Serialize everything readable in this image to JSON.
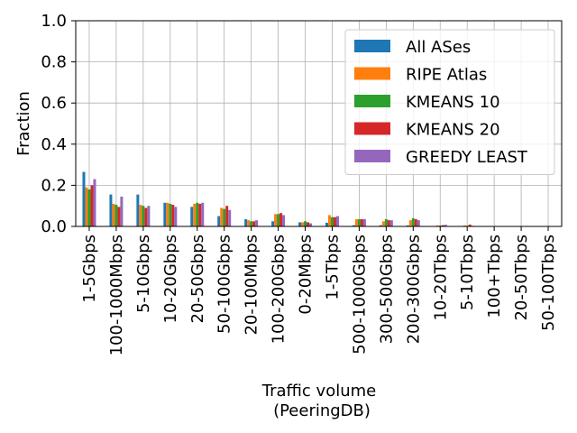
{
  "chart_data": {
    "type": "bar",
    "xlabel_line1": "Traffic volume",
    "xlabel_line2": "(PeeringDB)",
    "ylabel": "Fraction",
    "ylim": [
      0,
      1.0
    ],
    "yticks": [
      "0.0",
      "0.2",
      "0.4",
      "0.6",
      "0.8",
      "1.0"
    ],
    "grid": true,
    "legend_position": "top-right",
    "categories": [
      "1-5Gbps",
      "100-1000Mbps",
      "5-10Gbps",
      "10-20Gbps",
      "20-50Gbps",
      "50-100Gbps",
      "20-100Mbps",
      "100-200Gbps",
      "0-20Mbps",
      "1-5Tbps",
      "500-1000Gbps",
      "300-500Gbps",
      "200-300Gbps",
      "10-20Tbps",
      "5-10Tbps",
      "100+Tbps",
      "20-50Tbps",
      "50-100Tbps"
    ],
    "series": [
      {
        "name": "All ASes",
        "color": "#1f77b4",
        "values": [
          0.265,
          0.155,
          0.155,
          0.115,
          0.095,
          0.05,
          0.035,
          0.025,
          0.02,
          0.018,
          0.006,
          0.006,
          0.005,
          0.002,
          0.002,
          0.0,
          0.0,
          0.0
        ]
      },
      {
        "name": "RIPE Atlas",
        "color": "#ff7f0e",
        "values": [
          0.19,
          0.11,
          0.105,
          0.115,
          0.11,
          0.09,
          0.03,
          0.06,
          0.02,
          0.055,
          0.035,
          0.025,
          0.03,
          0.005,
          0.005,
          0.001,
          0.0,
          0.0
        ]
      },
      {
        "name": "KMEANS 10",
        "color": "#2ca02c",
        "values": [
          0.18,
          0.105,
          0.1,
          0.11,
          0.115,
          0.085,
          0.025,
          0.06,
          0.025,
          0.045,
          0.035,
          0.035,
          0.04,
          0.004,
          0.003,
          0.0,
          0.0,
          0.0
        ]
      },
      {
        "name": "KMEANS 20",
        "color": "#d62728",
        "values": [
          0.2,
          0.095,
          0.09,
          0.105,
          0.11,
          0.1,
          0.025,
          0.065,
          0.02,
          0.045,
          0.035,
          0.03,
          0.035,
          0.006,
          0.009,
          0.0,
          0.0,
          0.0
        ]
      },
      {
        "name": "GREEDY LEAST",
        "color": "#9467bd",
        "values": [
          0.23,
          0.145,
          0.1,
          0.095,
          0.115,
          0.08,
          0.03,
          0.055,
          0.015,
          0.05,
          0.035,
          0.03,
          0.03,
          0.008,
          0.003,
          0.0,
          0.0,
          0.0
        ]
      }
    ]
  }
}
